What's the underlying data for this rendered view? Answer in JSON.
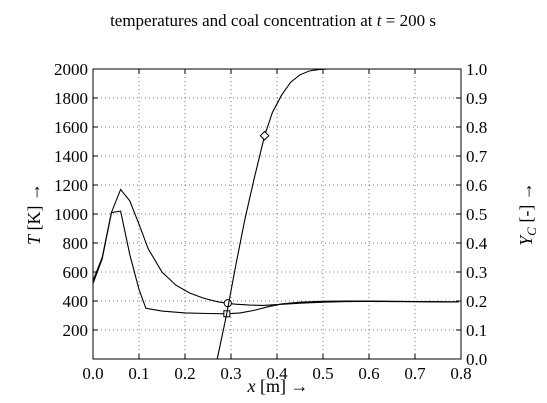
{
  "chart_data": {
    "type": "line",
    "title": "temperatures and coal concentration at t = 200 s",
    "title_parts": {
      "prefix": "temperatures and coal concentration at ",
      "var": "t",
      "suffix": " = 200 s"
    },
    "xlabel": "x [m] →",
    "xlabel_parts": {
      "var": "x",
      "rest": " [m] →"
    },
    "ylabel_left": "T [K] →",
    "ylabel_left_parts": {
      "var": "T",
      "rest": " [K] →"
    },
    "ylabel_right": "Y_C [-] →",
    "ylabel_right_parts": {
      "var": "Y",
      "sub": "C",
      "rest": " [-] →"
    },
    "xlim": [
      0,
      0.8
    ],
    "ylim_left": [
      0,
      2000
    ],
    "ylim_right": [
      0,
      1.0
    ],
    "grid": true,
    "x_ticks": [
      0.0,
      0.1,
      0.2,
      0.3,
      0.4,
      0.5,
      0.6,
      0.7,
      0.8
    ],
    "x_tick_labels": [
      "0.0",
      "0.1",
      "0.2",
      "0.3",
      "0.4",
      "0.5",
      "0.6",
      "0.7",
      "0.8"
    ],
    "y_left_ticks": [
      200,
      400,
      600,
      800,
      1000,
      1200,
      1400,
      1600,
      1800,
      2000
    ],
    "y_left_tick_labels": [
      "200",
      "400",
      "600",
      "800",
      "1000",
      "1200",
      "1400",
      "1600",
      "1800",
      "2000"
    ],
    "y_right_ticks": [
      0.0,
      0.1,
      0.2,
      0.3,
      0.4,
      0.5,
      0.6,
      0.7,
      0.8,
      0.9,
      1.0
    ],
    "y_right_tick_labels": [
      "0.0",
      "0.1",
      "0.2",
      "0.3",
      "0.4",
      "0.5",
      "0.6",
      "0.7",
      "0.8",
      "0.9",
      "1.0"
    ],
    "series": [
      {
        "axis": "left",
        "marker": "circle",
        "marker_at": [
          0.293,
          385
        ],
        "x": [
          0.0,
          0.02,
          0.04,
          0.06,
          0.08,
          0.1,
          0.12,
          0.15,
          0.18,
          0.21,
          0.24,
          0.27,
          0.29,
          0.31,
          0.34,
          0.37,
          0.4,
          0.45,
          0.5,
          0.55,
          0.6,
          0.65,
          0.7,
          0.75,
          0.795
        ],
        "values": [
          540,
          700,
          1010,
          1170,
          1090,
          930,
          760,
          600,
          510,
          455,
          420,
          395,
          385,
          378,
          372,
          370,
          375,
          385,
          392,
          396,
          397,
          396,
          395,
          394,
          394
        ]
      },
      {
        "axis": "left",
        "marker": "square",
        "marker_at": [
          0.291,
          312
        ],
        "x": [
          0.0,
          0.02,
          0.04,
          0.06,
          0.08,
          0.1,
          0.115,
          0.15,
          0.2,
          0.25,
          0.29,
          0.32,
          0.35,
          0.38,
          0.41,
          0.45,
          0.5,
          0.55,
          0.6,
          0.65,
          0.7,
          0.75,
          0.795
        ],
        "values": [
          520,
          690,
          1010,
          1020,
          720,
          480,
          350,
          330,
          318,
          314,
          312,
          318,
          335,
          360,
          380,
          392,
          398,
          400,
          400,
          398,
          396,
          395,
          394
        ]
      },
      {
        "axis": "right",
        "marker": "diamond",
        "marker_at": [
          0.373,
          0.77
        ],
        "x": [
          0.27,
          0.29,
          0.31,
          0.33,
          0.35,
          0.373,
          0.39,
          0.41,
          0.43,
          0.45,
          0.47,
          0.49,
          0.51,
          0.55,
          0.6,
          0.7,
          0.795
        ],
        "values": [
          0.0,
          0.15,
          0.32,
          0.48,
          0.62,
          0.77,
          0.85,
          0.91,
          0.955,
          0.98,
          0.993,
          0.998,
          1.0,
          1.0,
          1.0,
          1.0,
          1.0
        ]
      }
    ]
  }
}
